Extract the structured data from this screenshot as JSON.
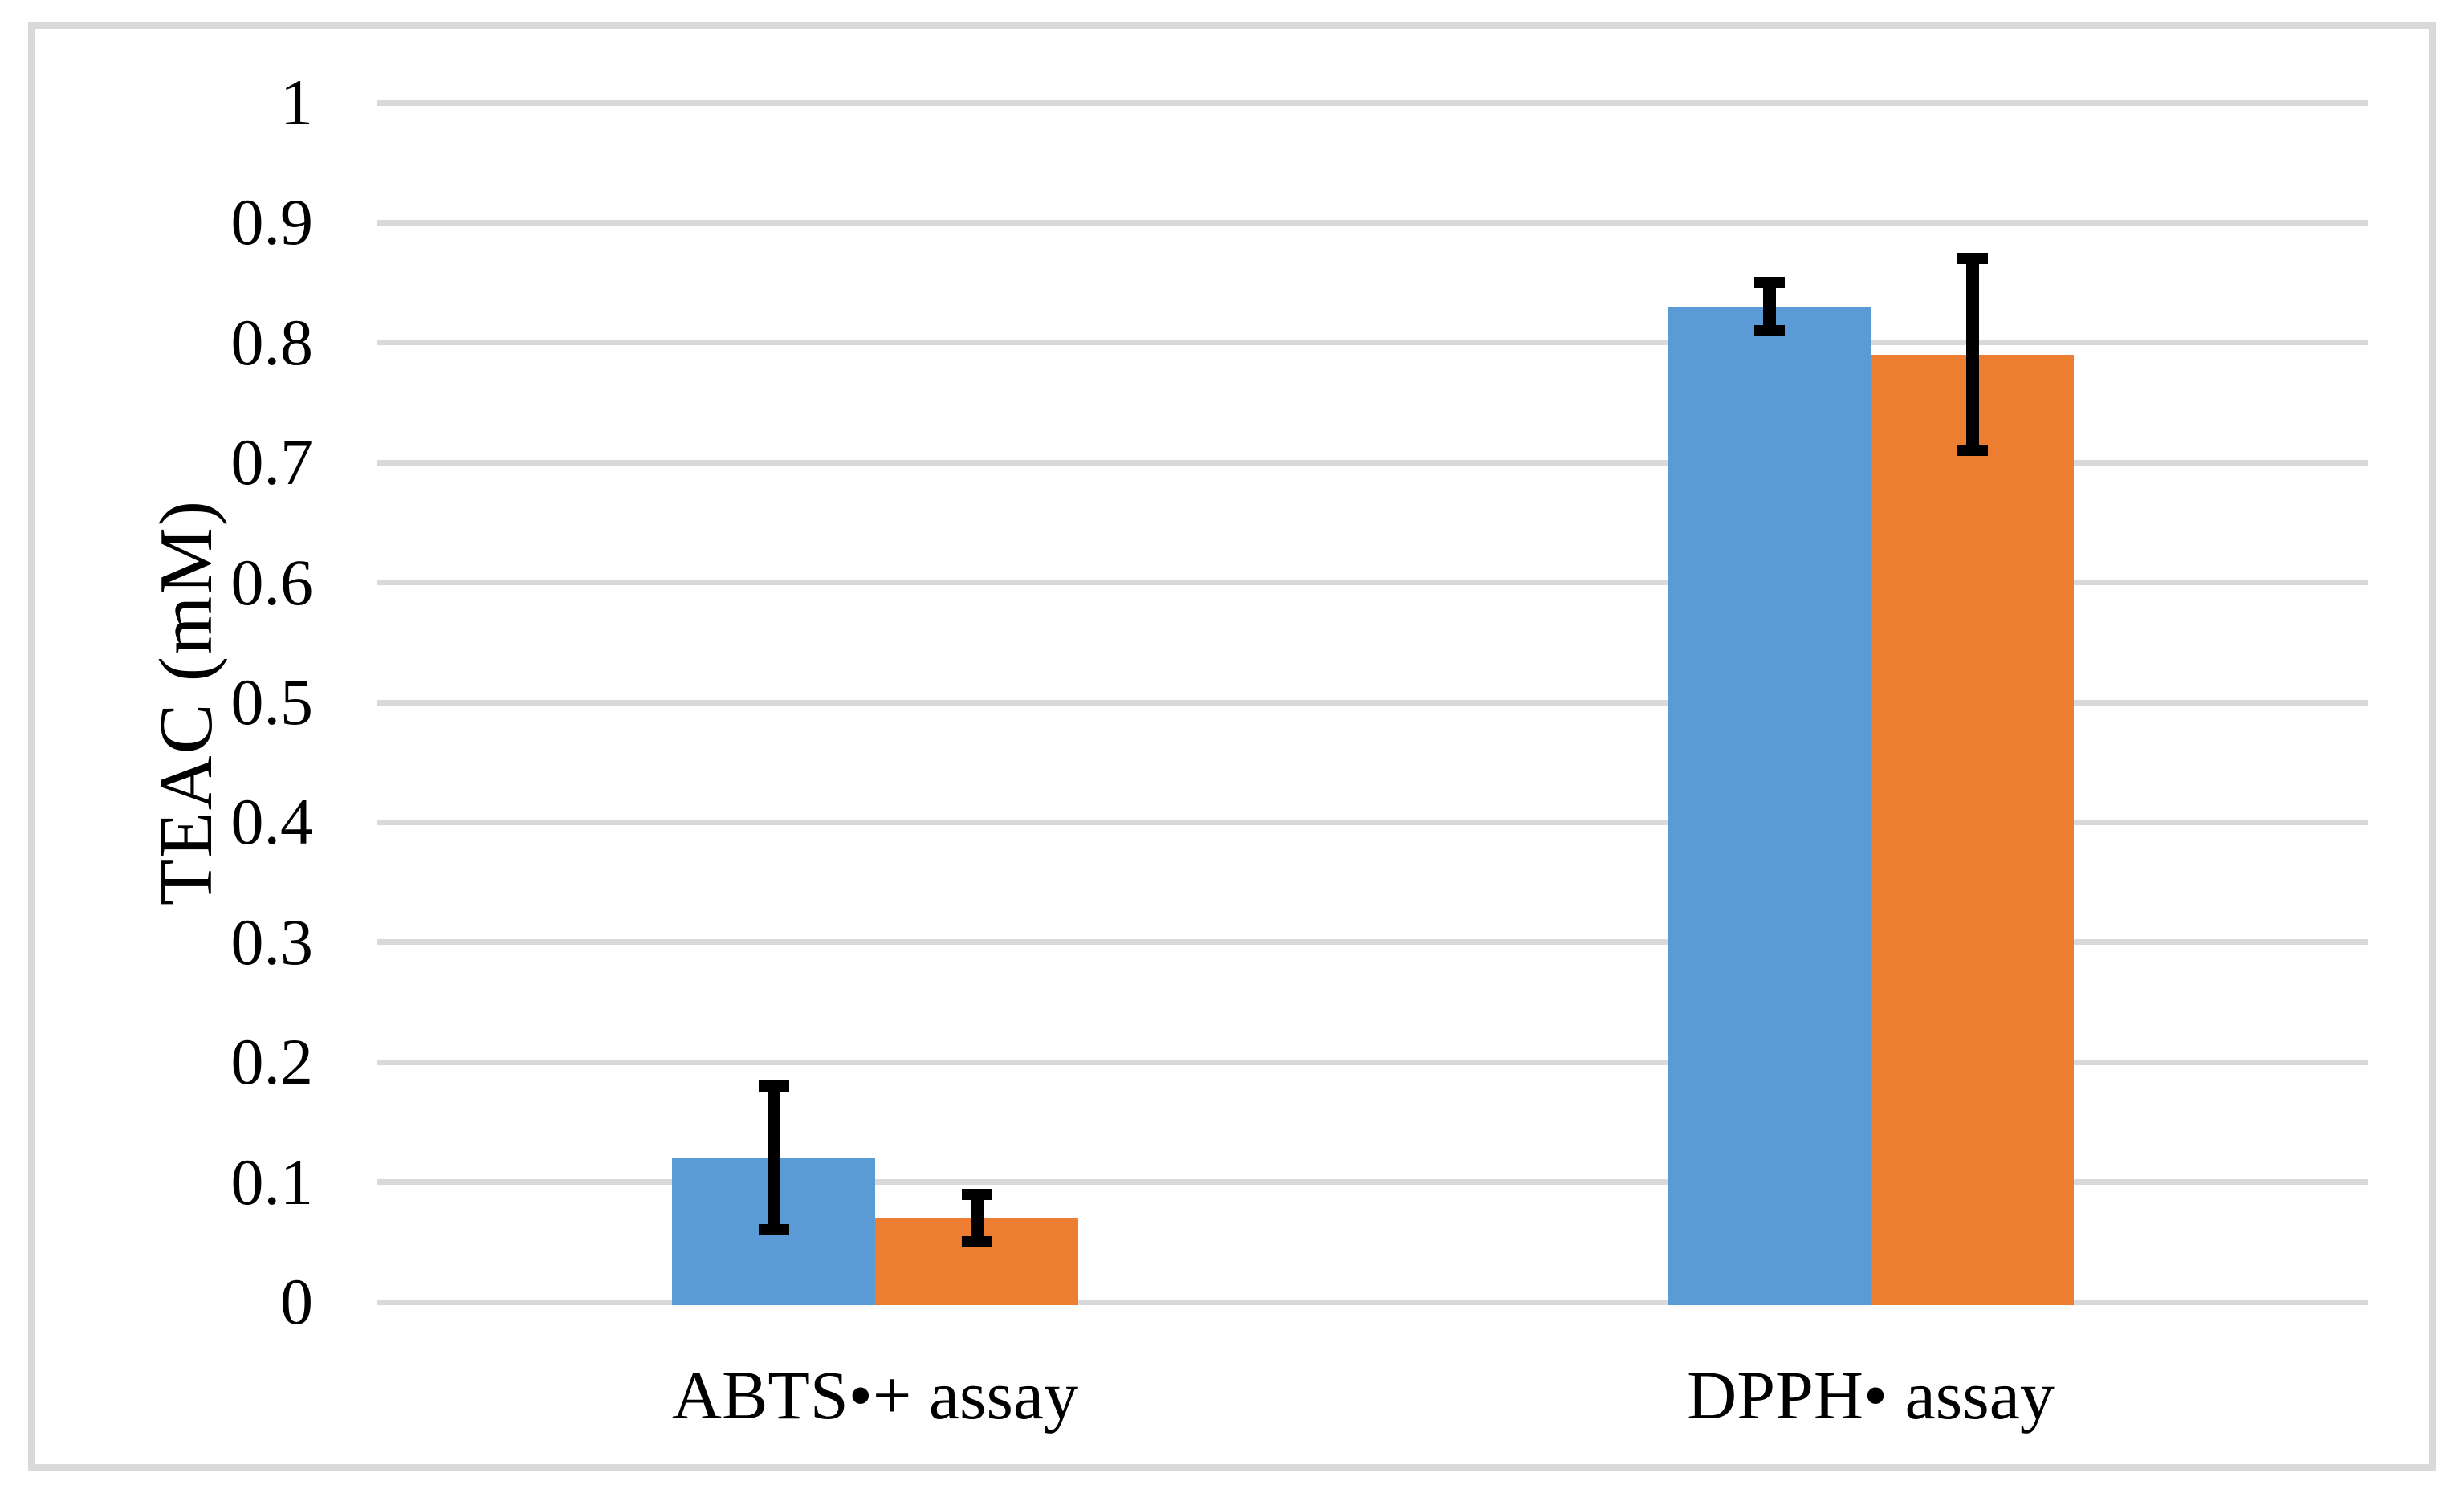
{
  "figure": {
    "background": "#FFFFFF",
    "border_color": "#D9D9D9"
  },
  "chart_data": {
    "type": "bar",
    "title": "",
    "xlabel": "",
    "ylabel": "TEAC (mM)",
    "categories": [
      "ABTS•+ assay",
      "DPPH• assay"
    ],
    "series": [
      {
        "color": "#5B9BD5",
        "values": [
          0.12,
          0.83
        ],
        "errors": [
          0.06,
          0.02
        ]
      },
      {
        "color": "#ED7D31",
        "values": [
          0.07,
          0.79
        ],
        "errors": [
          0.02,
          0.08
        ]
      }
    ],
    "ylim": [
      0,
      1
    ],
    "ytick_step": 0.1,
    "ytick_labels": [
      "0",
      "0.1",
      "0.2",
      "0.3",
      "0.4",
      "0.5",
      "0.6",
      "0.7",
      "0.8",
      "0.9",
      "1"
    ],
    "grid": true,
    "gridline_color": "#D9D9D9",
    "error_bar_color": "#000000",
    "legend_position": "none"
  }
}
